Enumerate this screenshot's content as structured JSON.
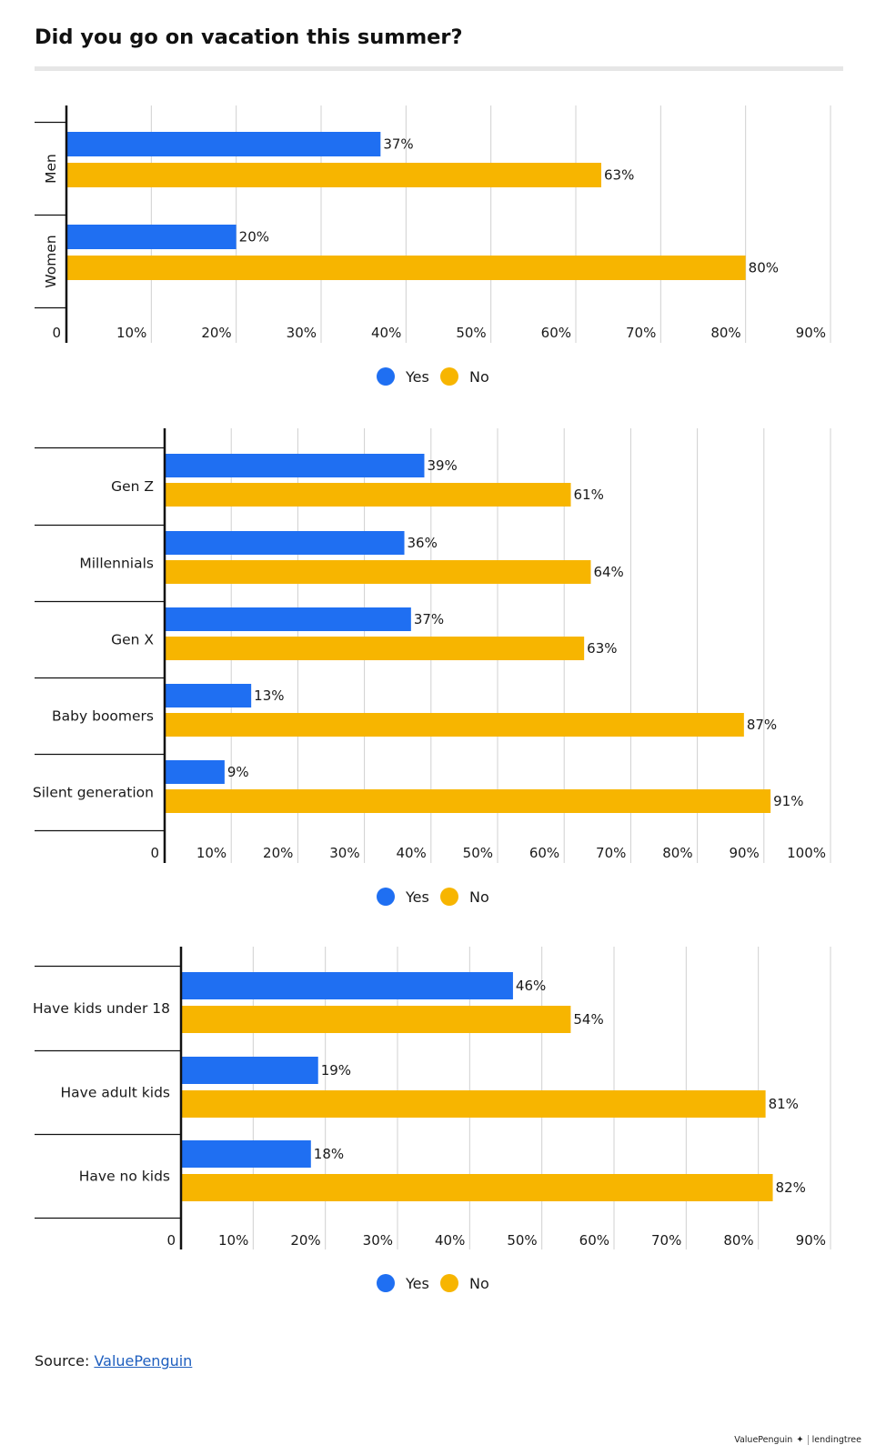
{
  "title": "Did you go on vacation this summer?",
  "colors": {
    "yes": "#1f6ff2",
    "no": "#f7b500",
    "grid": "#d0d0d0",
    "axis": "#111111"
  },
  "legend": {
    "yes_label": "Yes",
    "no_label": "No"
  },
  "chart_data": [
    {
      "type": "bar",
      "orientation": "horizontal",
      "category_label_orientation": "rotated",
      "categories": [
        "Men",
        "Women"
      ],
      "series": [
        {
          "name": "Yes",
          "values": [
            37,
            20
          ]
        },
        {
          "name": "No",
          "values": [
            63,
            80
          ]
        }
      ],
      "xlim": [
        0,
        90
      ],
      "ticks": [
        0,
        10,
        20,
        30,
        40,
        50,
        60,
        70,
        80,
        90
      ],
      "tick_labels": [
        "0",
        "10%",
        "20%",
        "30%",
        "40%",
        "50%",
        "60%",
        "70%",
        "80%",
        "90%"
      ],
      "value_labels": [
        [
          "37%",
          "20%"
        ],
        [
          "63%",
          "80%"
        ]
      ],
      "legend": "bottom-center"
    },
    {
      "type": "bar",
      "orientation": "horizontal",
      "category_label_orientation": "horizontal",
      "categories": [
        "Gen Z",
        "Millennials",
        "Gen X",
        "Baby boomers",
        "Silent generation"
      ],
      "series": [
        {
          "name": "Yes",
          "values": [
            39,
            36,
            37,
            13,
            9
          ]
        },
        {
          "name": "No",
          "values": [
            61,
            64,
            63,
            87,
            91
          ]
        }
      ],
      "xlim": [
        0,
        100
      ],
      "ticks": [
        0,
        10,
        20,
        30,
        40,
        50,
        60,
        70,
        80,
        90,
        100
      ],
      "tick_labels": [
        "0",
        "10%",
        "20%",
        "30%",
        "40%",
        "50%",
        "60%",
        "70%",
        "80%",
        "90%",
        "100%"
      ],
      "value_labels": [
        [
          "39%",
          "36%",
          "37%",
          "13%",
          "9%"
        ],
        [
          "61%",
          "64%",
          "63%",
          "87%",
          "91%"
        ]
      ],
      "legend": "bottom-center"
    },
    {
      "type": "bar",
      "orientation": "horizontal",
      "category_label_orientation": "horizontal",
      "categories": [
        "Have kids under 18",
        "Have adult kids",
        "Have no kids"
      ],
      "series": [
        {
          "name": "Yes",
          "values": [
            46,
            19,
            18
          ]
        },
        {
          "name": "No",
          "values": [
            54,
            81,
            82
          ]
        }
      ],
      "xlim": [
        0,
        90
      ],
      "ticks": [
        0,
        10,
        20,
        30,
        40,
        50,
        60,
        70,
        80,
        90
      ],
      "tick_labels": [
        "0",
        "10%",
        "20%",
        "30%",
        "40%",
        "50%",
        "60%",
        "70%",
        "80%",
        "90%"
      ],
      "value_labels": [
        [
          "46%",
          "19%",
          "18%"
        ],
        [
          "54%",
          "81%",
          "82%"
        ]
      ],
      "legend": "bottom-center"
    }
  ],
  "footer": {
    "source_prefix": "Source:",
    "source_link": "ValuePenguin",
    "brand_left": "ValuePenguin",
    "brand_right": "lendingtree"
  }
}
